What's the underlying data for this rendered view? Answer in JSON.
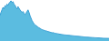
{
  "chart_data": {
    "type": "area",
    "values": [
      620,
      700,
      760,
      820,
      780,
      860,
      840,
      900,
      870,
      920,
      950,
      980,
      940,
      960,
      900,
      870,
      820,
      780,
      840,
      800,
      760,
      730,
      700,
      720,
      680,
      640,
      680,
      720,
      760,
      700,
      620,
      560,
      500,
      460,
      420,
      390,
      380,
      360,
      340,
      320,
      310,
      290,
      280,
      270,
      260,
      255,
      245,
      240,
      230,
      225,
      215,
      210,
      200,
      205,
      195,
      190,
      185,
      180,
      175,
      170,
      165,
      162,
      158,
      155,
      150,
      148,
      145,
      143,
      140,
      138,
      135,
      133,
      130,
      128,
      125,
      123,
      120,
      118,
      115,
      113,
      110,
      108,
      105,
      103,
      100,
      98,
      96,
      94,
      92,
      90,
      88,
      87,
      85,
      84,
      82,
      80,
      79,
      78,
      76,
      75,
      73,
      72,
      70,
      69,
      68,
      67,
      66,
      65,
      64,
      63
    ],
    "colors": [
      "#5bbce0",
      "#3a9fd4"
    ],
    "ylim": [
      0,
      1000
    ],
    "tick_labels": false
  }
}
